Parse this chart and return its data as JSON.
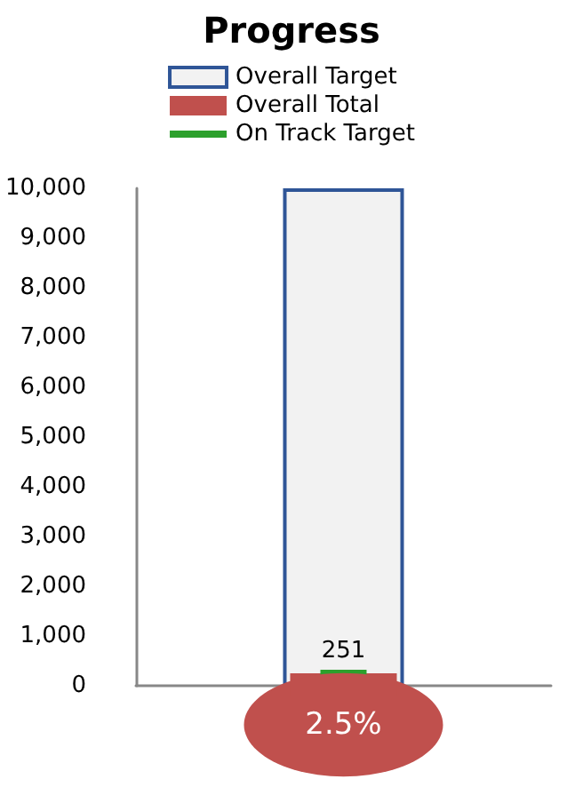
{
  "chart_data": {
    "type": "bar",
    "title": "Progress",
    "categories": [
      null
    ],
    "series": [
      {
        "name": "Overall Target",
        "color": "#2f5597",
        "values": [
          10000
        ]
      },
      {
        "name": "Overall Total",
        "color": "#c0504d",
        "values": [
          251
        ],
        "value_labels": [
          "251"
        ]
      }
    ],
    "ref_lines": [
      {
        "axis": "y",
        "value": 250,
        "label": "On Track Target",
        "color": "#2ca02c"
      }
    ],
    "ylim": [
      0,
      10000
    ],
    "yticks": [
      0,
      {
        "value": 1000,
        "label": "1,000"
      },
      {
        "value": 2000,
        "label": "2,000"
      },
      {
        "value": 3000,
        "label": "3,000"
      },
      {
        "value": 4000,
        "label": "4,000"
      },
      {
        "value": 5000,
        "label": "5,000"
      },
      {
        "value": 6000,
        "label": "6,000"
      },
      {
        "value": 7000,
        "label": "7,000"
      },
      {
        "value": 8000,
        "label": "8,000"
      },
      {
        "value": 9000,
        "label": "9,000"
      },
      {
        "value": 10000,
        "label": "10,000"
      }
    ],
    "grid": false,
    "legend": "top",
    "tick_labels": "y",
    "annotations": [
      "2.5%"
    ]
  }
}
